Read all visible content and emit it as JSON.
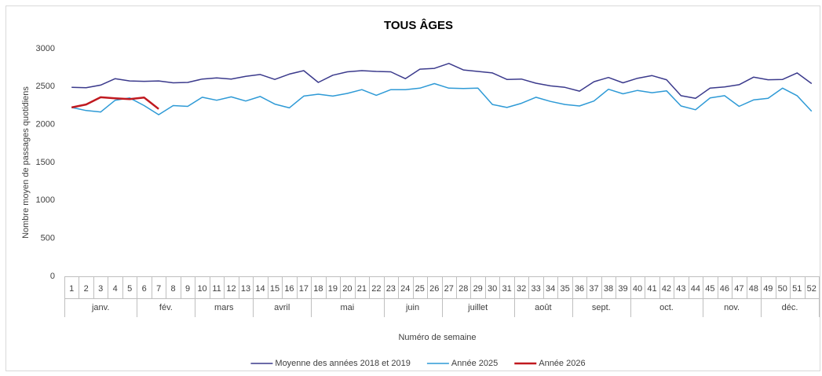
{
  "chart_data": {
    "type": "line",
    "title": "TOUS ÂGES",
    "x_label": "Numéro de semaine",
    "y_label": "Nombre moyen de passages quotidiens",
    "categories": [
      "1",
      "2",
      "3",
      "4",
      "5",
      "6",
      "7",
      "8",
      "9",
      "10",
      "11",
      "12",
      "13",
      "14",
      "15",
      "16",
      "17",
      "18",
      "19",
      "20",
      "21",
      "22",
      "23",
      "24",
      "25",
      "26",
      "27",
      "28",
      "29",
      "30",
      "31",
      "32",
      "33",
      "34",
      "35",
      "36",
      "37",
      "38",
      "39",
      "40",
      "41",
      "42",
      "43",
      "44",
      "45",
      "46",
      "47",
      "48",
      "49",
      "50",
      "51",
      "52"
    ],
    "category_groups": [
      "janv.",
      null,
      null,
      null,
      null,
      "fév.",
      null,
      null,
      null,
      "mars",
      null,
      null,
      null,
      "avril",
      null,
      null,
      null,
      "mai",
      null,
      null,
      null,
      null,
      "juin",
      null,
      null,
      null,
      "juillet",
      null,
      null,
      null,
      null,
      "août",
      null,
      null,
      null,
      "sept.",
      null,
      null,
      null,
      "oct.",
      null,
      null,
      null,
      null,
      "nov.",
      null,
      null,
      null,
      "déc.",
      null,
      null,
      null
    ],
    "ylim": [
      0,
      3000
    ],
    "yticks": [
      0,
      500,
      1000,
      1500,
      2000,
      2500,
      3000
    ],
    "grid": false,
    "legend": "bottom",
    "series": [
      {
        "name": "Moyenne des années 2018 et 2019",
        "color": "#3b3a8c",
        "values": [
          2490,
          2485,
          2520,
          2605,
          2575,
          2570,
          2575,
          2550,
          2555,
          2600,
          2615,
          2600,
          2635,
          2660,
          2595,
          2665,
          2710,
          2555,
          2650,
          2695,
          2710,
          2700,
          2695,
          2605,
          2730,
          2740,
          2805,
          2720,
          2700,
          2680,
          2595,
          2600,
          2545,
          2510,
          2490,
          2440,
          2565,
          2620,
          2550,
          2610,
          2645,
          2590,
          2380,
          2345,
          2480,
          2495,
          2525,
          2625,
          2590,
          2595,
          2680,
          2540
        ]
      },
      {
        "name": "Année 2025",
        "color": "#2e9ad6",
        "values": [
          2225,
          2185,
          2165,
          2320,
          2350,
          2250,
          2130,
          2250,
          2240,
          2360,
          2320,
          2365,
          2310,
          2370,
          2270,
          2220,
          2375,
          2400,
          2375,
          2410,
          2460,
          2385,
          2460,
          2460,
          2480,
          2540,
          2480,
          2475,
          2480,
          2265,
          2225,
          2280,
          2360,
          2305,
          2265,
          2245,
          2310,
          2465,
          2405,
          2450,
          2420,
          2445,
          2245,
          2195,
          2350,
          2380,
          2240,
          2325,
          2345,
          2480,
          2380,
          2175
        ]
      },
      {
        "name": "Année 2026",
        "color": "#c0191f",
        "values": [
          2225,
          2265,
          2360,
          2345,
          2335,
          2355,
          2205,
          null,
          null,
          null,
          null,
          null,
          null,
          null,
          null,
          null,
          null,
          null,
          null,
          null,
          null,
          null,
          null,
          null,
          null,
          null,
          null,
          null,
          null,
          null,
          null,
          null,
          null,
          null,
          null,
          null,
          null,
          null,
          null,
          null,
          null,
          null,
          null,
          null,
          null,
          null,
          null,
          null,
          null,
          null,
          null,
          null
        ]
      }
    ]
  }
}
